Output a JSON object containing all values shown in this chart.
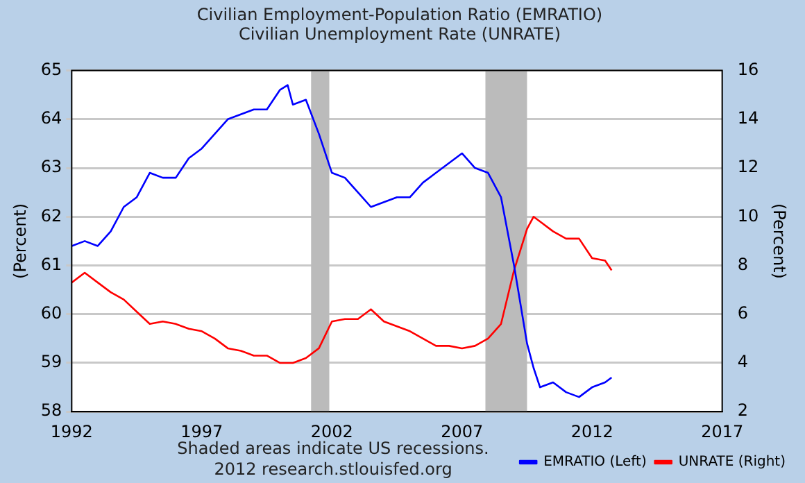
{
  "chart_data": {
    "type": "line",
    "title": "Civilian Employment-Population Ratio (EMRATIO)",
    "subtitle": "Civilian Unemployment Rate (UNRATE)",
    "ylabel": "(Percent)",
    "y2label": "(Percent)",
    "x": [
      1992,
      1992.5,
      1993,
      1993.5,
      1994,
      1994.5,
      1995,
      1995.5,
      1996,
      1996.5,
      1997,
      1997.5,
      1998,
      1998.5,
      1999,
      1999.5,
      2000,
      2000.3,
      2000.5,
      2001,
      2001.5,
      2002,
      2002.5,
      2003,
      2003.5,
      2004,
      2004.5,
      2005,
      2005.5,
      2006,
      2006.5,
      2007,
      2007.5,
      2008,
      2008.5,
      2009,
      2009.5,
      2009.75,
      2010,
      2010.5,
      2011,
      2011.5,
      2012,
      2012.5,
      2012.75
    ],
    "series": [
      {
        "name": "EMRATIO (Left)",
        "color": "#0000ff",
        "axis": "y",
        "values": [
          61.4,
          61.5,
          61.4,
          61.7,
          62.2,
          62.4,
          62.9,
          62.8,
          62.8,
          63.2,
          63.4,
          63.7,
          64.0,
          64.1,
          64.2,
          64.2,
          64.6,
          64.7,
          64.3,
          64.4,
          63.7,
          62.9,
          62.8,
          62.5,
          62.2,
          62.3,
          62.4,
          62.4,
          62.7,
          62.9,
          63.1,
          63.3,
          63.0,
          62.9,
          62.4,
          61.0,
          59.4,
          58.9,
          58.5,
          58.6,
          58.4,
          58.3,
          58.5,
          58.6,
          58.7
        ]
      },
      {
        "name": "UNRATE (Right)",
        "color": "#ff0000",
        "axis": "y2",
        "values": [
          7.3,
          7.7,
          7.3,
          6.9,
          6.6,
          6.1,
          5.6,
          5.7,
          5.6,
          5.4,
          5.3,
          5.0,
          4.6,
          4.5,
          4.3,
          4.3,
          4.0,
          4.0,
          4.0,
          4.2,
          4.6,
          5.7,
          5.8,
          5.8,
          6.2,
          5.7,
          5.5,
          5.3,
          5.0,
          4.7,
          4.7,
          4.6,
          4.7,
          5.0,
          5.6,
          7.8,
          9.5,
          10.0,
          9.8,
          9.4,
          9.1,
          9.1,
          8.3,
          8.2,
          7.8
        ]
      }
    ],
    "xlim": [
      1992,
      2017
    ],
    "xticks": [
      1992,
      1997,
      2002,
      2007,
      2012,
      2017
    ],
    "ylim": [
      58,
      65
    ],
    "yticks": [
      58,
      59,
      60,
      61,
      62,
      63,
      64,
      65
    ],
    "y2lim": [
      2,
      16
    ],
    "y2ticks": [
      2,
      4,
      6,
      8,
      10,
      12,
      14,
      16
    ],
    "bands": [
      {
        "axis": "x",
        "from": 2001.2,
        "to": 2001.9,
        "color": "#bbbbbb"
      },
      {
        "axis": "x",
        "from": 2007.9,
        "to": 2009.5,
        "color": "#bbbbbb"
      }
    ],
    "annotations": [
      "Shaded areas indicate US recessions.",
      "2012 research.stlouisfed.org"
    ],
    "grid": "y",
    "legend": "bottom right",
    "marker": "none",
    "line_style": "solid"
  }
}
